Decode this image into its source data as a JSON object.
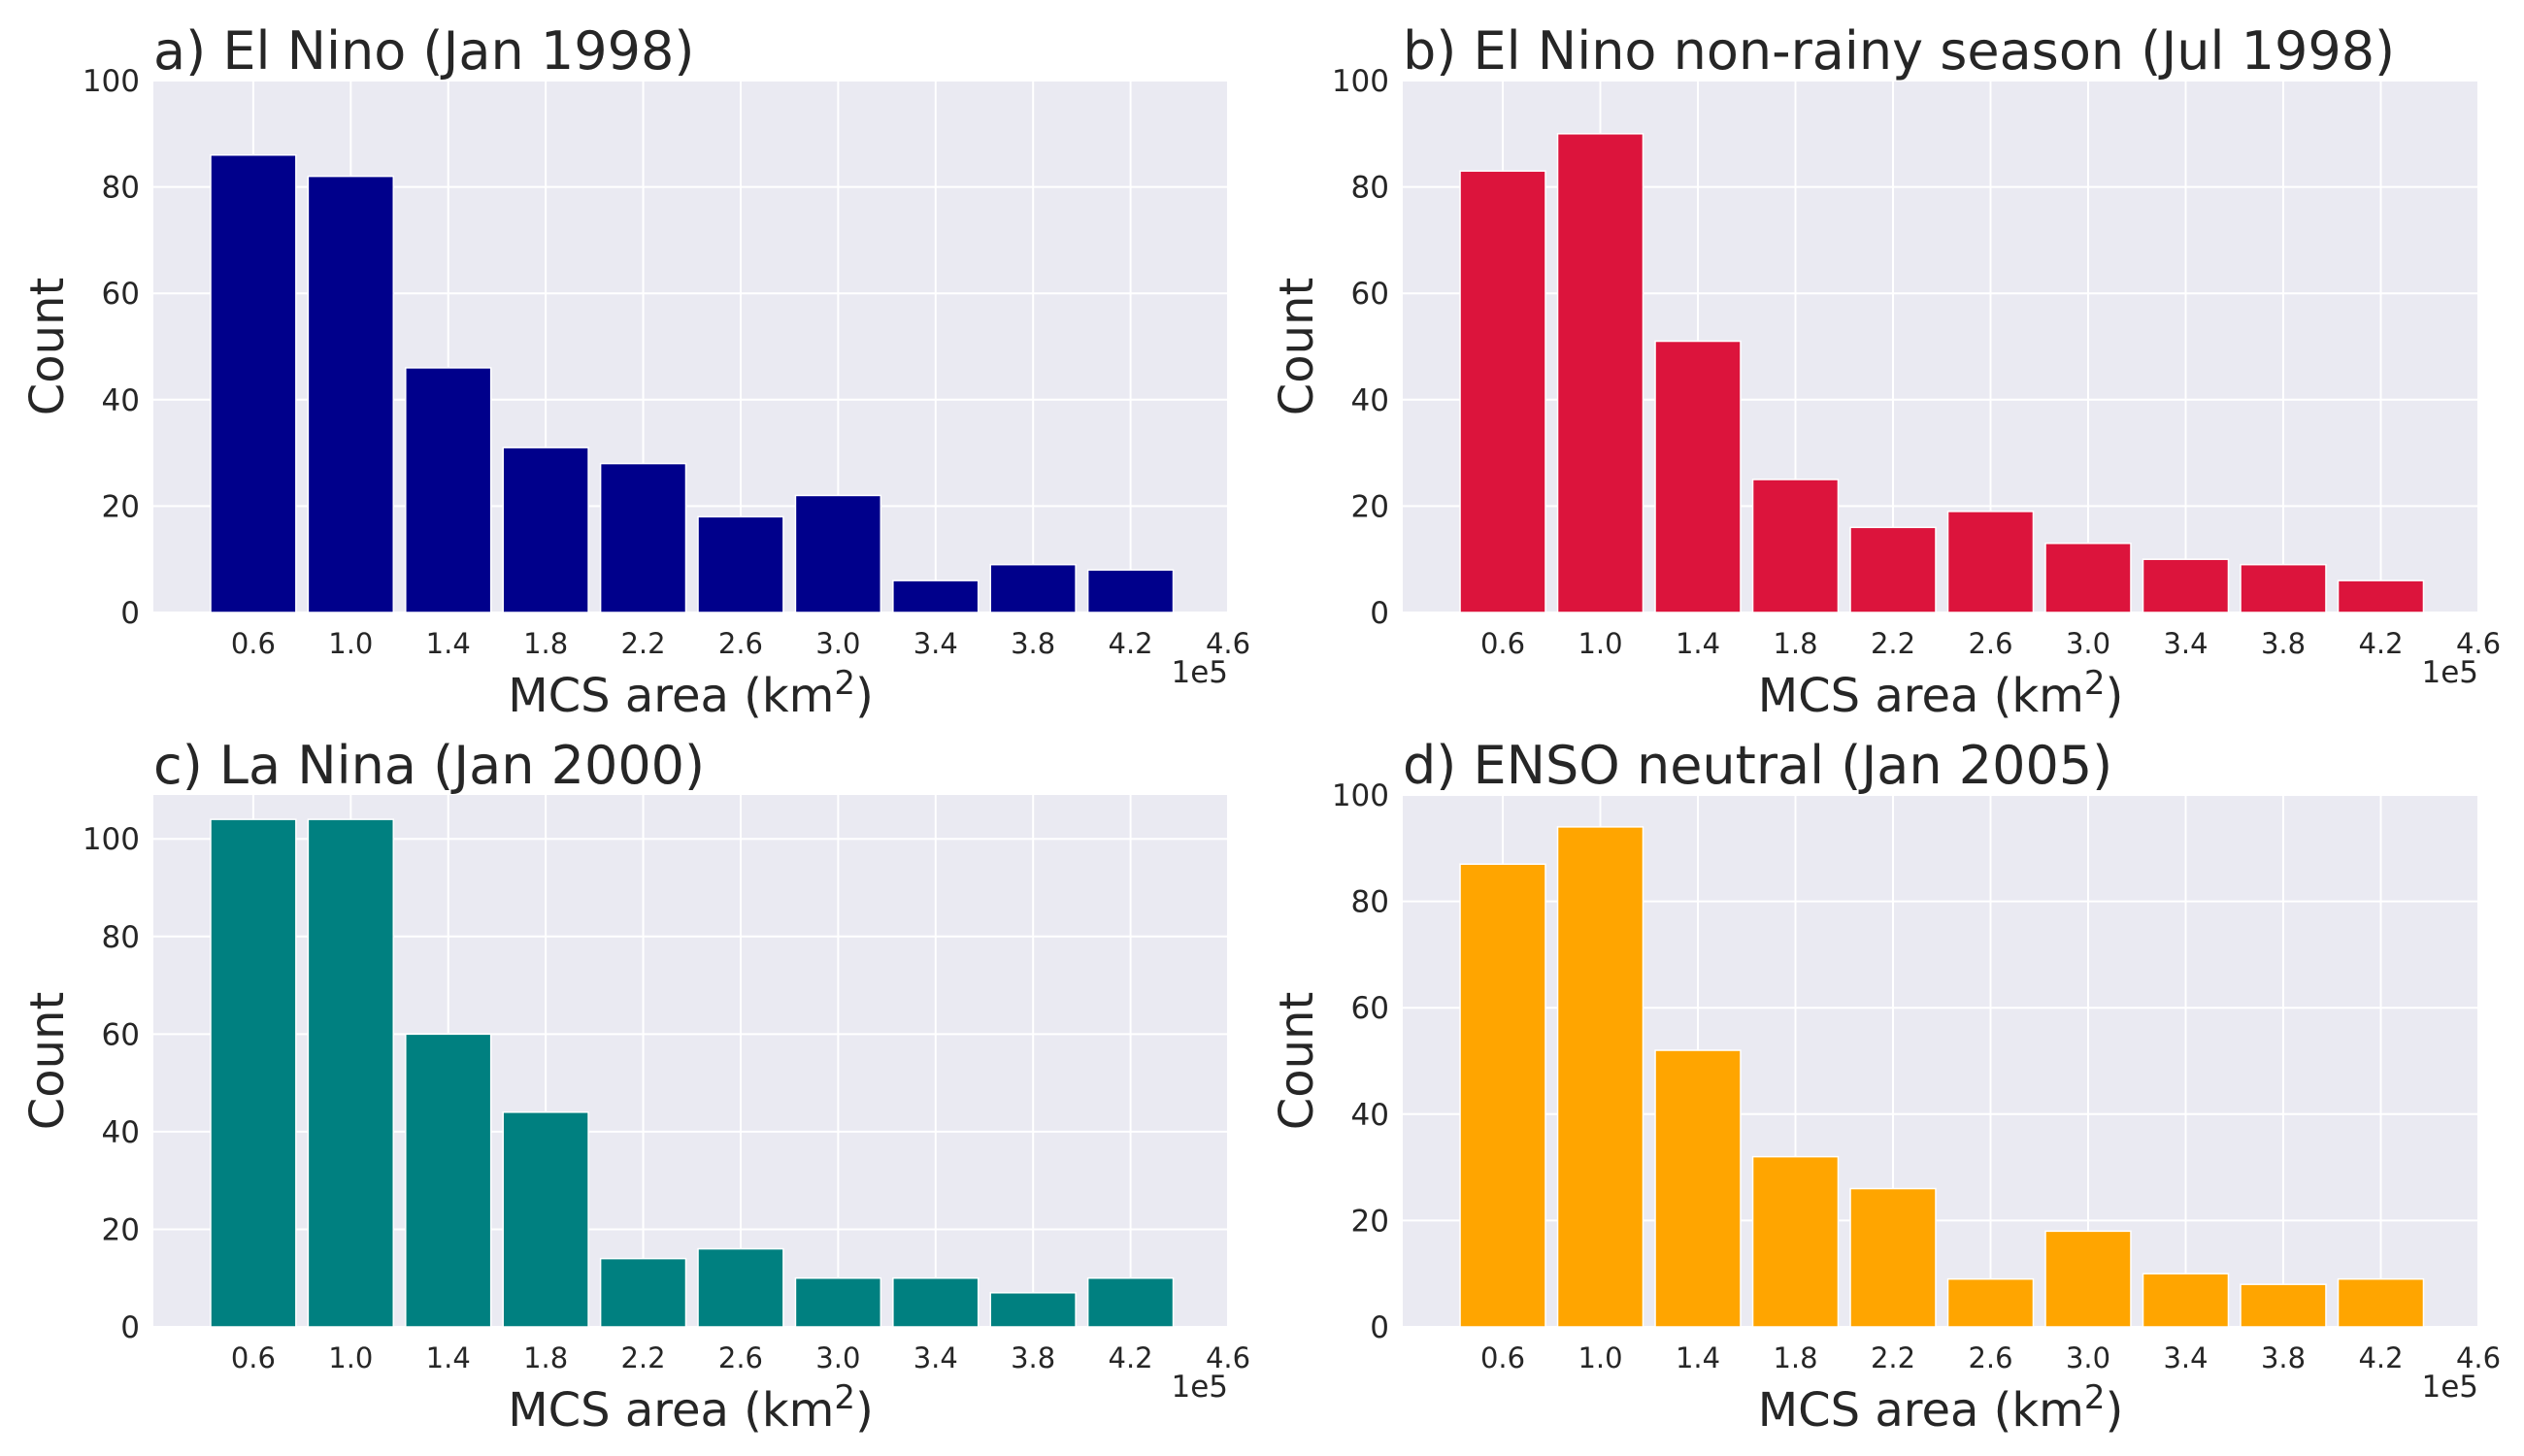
{
  "chart_data": [
    {
      "type": "bar",
      "title": "a) El Nino (Jan 1998)",
      "xlabel": "MCS area (km",
      "xlabel_sup": "2",
      "xlabel_tail": ")",
      "ylabel": "Count",
      "x_offset_text": "1e5",
      "x": [
        0.6,
        1.0,
        1.4,
        1.8,
        2.2,
        2.6,
        3.0,
        3.4,
        3.8,
        4.2
      ],
      "values": [
        86,
        82,
        46,
        31,
        28,
        18,
        22,
        6,
        9,
        8
      ],
      "bar_width": 0.35,
      "xticks": [
        "0.6",
        "1.0",
        "1.4",
        "1.8",
        "2.2",
        "2.6",
        "3.0",
        "3.4",
        "3.8",
        "4.2",
        "4.6"
      ],
      "xlim": [
        0.19,
        4.6
      ],
      "yticks": [
        0,
        20,
        40,
        60,
        80,
        100
      ],
      "ylim": [
        0,
        100
      ],
      "color": "#00008B",
      "grid": true
    },
    {
      "type": "bar",
      "title": "b) El Nino non-rainy season (Jul 1998)",
      "xlabel": "MCS area (km",
      "xlabel_sup": "2",
      "xlabel_tail": ")",
      "ylabel": "Count",
      "x_offset_text": "1e5",
      "x": [
        0.6,
        1.0,
        1.4,
        1.8,
        2.2,
        2.6,
        3.0,
        3.4,
        3.8,
        4.2
      ],
      "values": [
        83,
        90,
        51,
        25,
        16,
        19,
        13,
        10,
        9,
        6
      ],
      "bar_width": 0.35,
      "xticks": [
        "0.6",
        "1.0",
        "1.4",
        "1.8",
        "2.2",
        "2.6",
        "3.0",
        "3.4",
        "3.8",
        "4.2",
        "4.6"
      ],
      "xlim": [
        0.19,
        4.6
      ],
      "yticks": [
        0,
        20,
        40,
        60,
        80,
        100
      ],
      "ylim": [
        0,
        100
      ],
      "color": "#DC143C",
      "grid": true
    },
    {
      "type": "bar",
      "title": "c) La Nina (Jan 2000)",
      "xlabel": "MCS area (km",
      "xlabel_sup": "2",
      "xlabel_tail": ")",
      "ylabel": "Count",
      "x_offset_text": "1e5",
      "x": [
        0.6,
        1.0,
        1.4,
        1.8,
        2.2,
        2.6,
        3.0,
        3.4,
        3.8,
        4.2
      ],
      "values": [
        104,
        104,
        60,
        44,
        14,
        16,
        10,
        10,
        7,
        10
      ],
      "bar_width": 0.35,
      "xticks": [
        "0.6",
        "1.0",
        "1.4",
        "1.8",
        "2.2",
        "2.6",
        "3.0",
        "3.4",
        "3.8",
        "4.2",
        "4.6"
      ],
      "xlim": [
        0.19,
        4.6
      ],
      "yticks": [
        0,
        20,
        40,
        60,
        80,
        100
      ],
      "ylim": [
        0,
        109
      ],
      "color": "#008080",
      "grid": true
    },
    {
      "type": "bar",
      "title": "d) ENSO neutral (Jan 2005)",
      "xlabel": "MCS area (km",
      "xlabel_sup": "2",
      "xlabel_tail": ")",
      "ylabel": "Count",
      "x_offset_text": "1e5",
      "x": [
        0.6,
        1.0,
        1.4,
        1.8,
        2.2,
        2.6,
        3.0,
        3.4,
        3.8,
        4.2
      ],
      "values": [
        87,
        94,
        52,
        32,
        26,
        9,
        18,
        10,
        8,
        9
      ],
      "bar_width": 0.35,
      "xticks": [
        "0.6",
        "1.0",
        "1.4",
        "1.8",
        "2.2",
        "2.6",
        "3.0",
        "3.4",
        "3.8",
        "4.2",
        "4.6"
      ],
      "xlim": [
        0.19,
        4.6
      ],
      "yticks": [
        0,
        20,
        40,
        60,
        80,
        100
      ],
      "ylim": [
        0,
        100
      ],
      "color": "#FFA500",
      "grid": true
    }
  ]
}
